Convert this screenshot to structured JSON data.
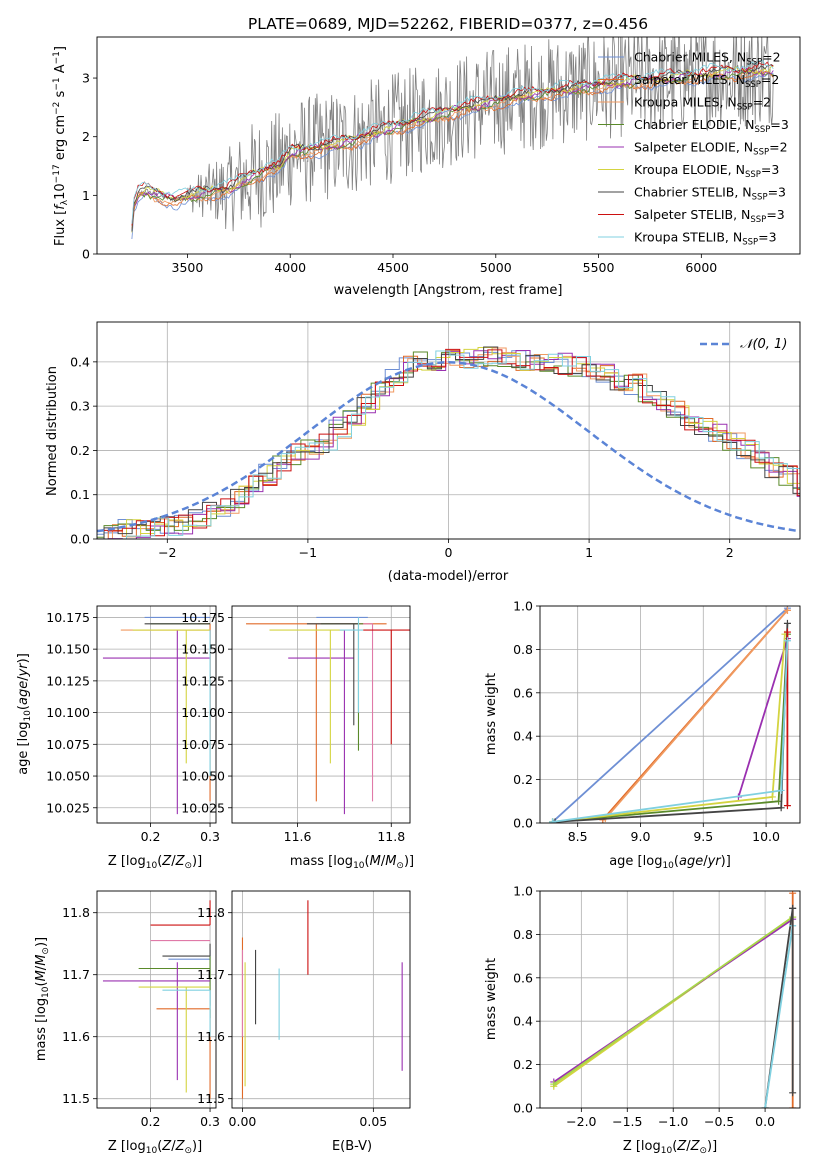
{
  "figure": {
    "title": "PLATE=0689, MJD=52262, FIBERID=0377, z=0.456"
  },
  "colors": {
    "chabrier_miles": "#6e8fd4",
    "salpeter_miles": "#e06a28",
    "kroupa_miles": "#f09a60",
    "chabrier_elodie": "#5a8a2a",
    "salpeter_elodie": "#9a30b0",
    "kroupa_elodie": "#d4d440",
    "chabrier_stelib": "#444444",
    "salpeter_stelib": "#cc1010",
    "kroupa_stelib": "#80d0e0",
    "data_grey": "#808080",
    "pink": "#e07aa8",
    "lime": "#a8d848",
    "normal_curve": "#5b84d6",
    "grid": "#b0b0b0"
  },
  "chart_data": [
    {
      "id": "spectrum",
      "type": "line",
      "title": "PLATE=0689, MJD=52262, FIBERID=0377, z=0.456",
      "xlabel": "wavelength [Angstrom, rest frame]",
      "ylabel": "Flux [f_λ 10^-17 erg cm^-2 s^-1 A^-1]",
      "ylabel_parts": {
        "prefix": "Flux [",
        "f": "f",
        "lambda": "λ",
        "mid": "10",
        "e1": "−17",
        "mid2": " erg cm",
        "e2": "−2",
        "mid3": " s",
        "e3": "−1",
        "mid4": " A",
        "e4": "−1",
        "suffix": "]"
      },
      "xlim": [
        3060,
        6480
      ],
      "ylim": [
        0,
        3.7
      ],
      "xticks": [
        3500,
        4000,
        4500,
        5000,
        5500,
        6000
      ],
      "yticks": [
        0,
        1,
        2,
        3
      ],
      "grid": false,
      "legend_position": "top-right",
      "series": [
        {
          "name": "Chabrier MILES, N_SSP=2",
          "label": "Chabrier MILES, N",
          "sub": "SSP",
          "n": "=2",
          "color_key": "chabrier_miles"
        },
        {
          "name": "Salpeter MILES, N_SSP=2",
          "label": "Salpeter MILES, N",
          "sub": "SSP",
          "n": "=2",
          "color_key": "salpeter_miles"
        },
        {
          "name": "Kroupa MILES, N_SSP=2",
          "label": "Kroupa MILES, N",
          "sub": "SSP",
          "n": "=2",
          "color_key": "kroupa_miles"
        },
        {
          "name": "Chabrier ELODIE, N_SSP=3",
          "label": "Chabrier ELODIE, N",
          "sub": "SSP",
          "n": "=3",
          "color_key": "chabrier_elodie"
        },
        {
          "name": "Salpeter ELODIE, N_SSP=2",
          "label": "Salpeter ELODIE, N",
          "sub": "SSP",
          "n": "=2",
          "color_key": "salpeter_elodie"
        },
        {
          "name": "Kroupa ELODIE, N_SSP=3",
          "label": "Kroupa ELODIE, N",
          "sub": "SSP",
          "n": "=3",
          "color_key": "kroupa_elodie"
        },
        {
          "name": "Chabrier STELIB, N_SSP=3",
          "label": "Chabrier STELIB, N",
          "sub": "SSP",
          "n": "=3",
          "color_key": "chabrier_stelib"
        },
        {
          "name": "Salpeter STELIB, N_SSP=3",
          "label": "Salpeter STELIB, N",
          "sub": "SSP",
          "n": "=3",
          "color_key": "salpeter_stelib"
        },
        {
          "name": "Kroupa STELIB, N_SSP=3",
          "label": "Kroupa STELIB, N",
          "sub": "SSP",
          "n": "=3",
          "color_key": "kroupa_stelib"
        }
      ],
      "continuum": {
        "x": [
          3200,
          3220,
          3240,
          3260,
          3300,
          3340,
          3400,
          3450,
          3500,
          3600,
          3700,
          3750,
          3800,
          3900,
          3950,
          4000,
          4100,
          4200,
          4300,
          4400,
          4500,
          4600,
          4700,
          4800,
          4900,
          5000,
          5100,
          5200,
          5300,
          5400,
          5500,
          5600,
          5700,
          5800,
          5900,
          6000,
          6100,
          6200,
          6300,
          6350
        ],
        "y": [
          0.0,
          0.0,
          0.82,
          1.02,
          1.08,
          1.02,
          0.95,
          0.93,
          0.98,
          1.05,
          1.1,
          1.2,
          1.3,
          1.45,
          1.5,
          1.72,
          1.78,
          1.85,
          1.92,
          2.05,
          2.15,
          2.25,
          2.35,
          2.45,
          2.52,
          2.6,
          2.68,
          2.72,
          2.78,
          2.82,
          2.88,
          2.92,
          2.95,
          2.98,
          3.02,
          3.05,
          3.08,
          3.1,
          3.12,
          3.12
        ]
      },
      "noisy_data_start": 3500
    },
    {
      "id": "residuals",
      "type": "bar",
      "xlabel": "(data-model)/error",
      "ylabel": "Normed distribution",
      "xlim": [
        -2.5,
        2.5
      ],
      "ylim": [
        0,
        0.49
      ],
      "xticks": [
        -2,
        -1,
        0,
        1,
        2
      ],
      "yticks": [
        0.0,
        0.1,
        0.2,
        0.3,
        0.4
      ],
      "grid": true,
      "legend_position": "top-right",
      "legend": [
        {
          "name": "N(0,1)",
          "label_pre": "𝒩(0, 1)",
          "color_key": "normal_curve"
        }
      ],
      "bin_width": 0.1,
      "base_histogram": [
        0.01,
        0.015,
        0.02,
        0.022,
        0.025,
        0.028,
        0.033,
        0.045,
        0.06,
        0.075,
        0.095,
        0.12,
        0.145,
        0.17,
        0.19,
        0.205,
        0.22,
        0.25,
        0.28,
        0.31,
        0.34,
        0.37,
        0.39,
        0.4,
        0.405,
        0.405,
        0.41,
        0.41,
        0.41,
        0.405,
        0.405,
        0.405,
        0.4,
        0.395,
        0.39,
        0.38,
        0.37,
        0.36,
        0.35,
        0.33,
        0.31,
        0.29,
        0.27,
        0.25,
        0.235,
        0.22,
        0.2,
        0.18,
        0.16,
        0.14,
        0.12,
        0.1,
        0.085,
        0.075,
        0.065,
        0.055,
        0.045,
        0.035,
        0.03,
        0.025,
        0.02,
        0.015,
        0.015,
        0.01,
        0.01,
        0.005
      ]
    },
    {
      "id": "age-vs-Z",
      "type": "scatter",
      "xlabel": "Z [log10(Z/Z⊙)]",
      "ylabel": "age [log10(age/yr)]",
      "xlim": [
        0.11,
        0.31
      ],
      "ylim": [
        10.013,
        10.184
      ],
      "xticks": [
        0.2,
        0.3
      ],
      "yticks": [
        10.025,
        10.05,
        10.075,
        10.1,
        10.125,
        10.15,
        10.175
      ],
      "grid": true,
      "errorbars": [
        {
          "x": 0.19,
          "y": 10.175,
          "xl": 0.19,
          "xh": 0.3,
          "yl": 10.175,
          "yh": 10.175,
          "color_key": "chabrier_miles"
        },
        {
          "x": 0.3,
          "y": 10.17,
          "xl": 0.28,
          "xh": 0.3,
          "yl": 10.03,
          "yh": 10.17,
          "color_key": "salpeter_miles"
        },
        {
          "x": 0.3,
          "y": 10.165,
          "xl": 0.15,
          "xh": 0.3,
          "yl": 10.165,
          "yh": 10.165,
          "color_key": "kroupa_miles"
        },
        {
          "x": 0.3,
          "y": 10.17,
          "xl": 0.2,
          "xh": 0.3,
          "yl": 10.17,
          "yh": 10.17,
          "color_key": "chabrier_elodie"
        },
        {
          "x": 0.245,
          "y": 10.143,
          "xl": 0.12,
          "xh": 0.3,
          "yl": 10.02,
          "yh": 10.165,
          "color_key": "salpeter_elodie"
        },
        {
          "x": 0.26,
          "y": 10.165,
          "xl": 0.17,
          "xh": 0.3,
          "yl": 10.06,
          "yh": 10.165,
          "color_key": "kroupa_elodie"
        },
        {
          "x": 0.3,
          "y": 10.17,
          "xl": 0.19,
          "xh": 0.3,
          "yl": 10.17,
          "yh": 10.17,
          "color_key": "chabrier_stelib"
        },
        {
          "x": 0.3,
          "y": 10.165,
          "xl": 0.3,
          "xh": 0.3,
          "yl": 10.075,
          "yh": 10.165,
          "color_key": "salpeter_stelib"
        },
        {
          "x": 0.3,
          "y": 10.165,
          "xl": 0.3,
          "xh": 0.3,
          "yl": 10.05,
          "yh": 10.165,
          "color_key": "kroupa_stelib"
        }
      ]
    },
    {
      "id": "age-vs-mass",
      "type": "scatter",
      "xlabel": "mass [log10(M/M⊙)]",
      "ylabel": "",
      "xlim": [
        11.46,
        11.84
      ],
      "ylim": [
        10.013,
        10.184
      ],
      "xticks": [
        11.6,
        11.8
      ],
      "yticks": [
        10.025,
        10.05,
        10.075,
        10.1,
        10.125,
        10.15,
        10.175
      ],
      "grid": true,
      "errorbars": [
        {
          "x": 11.7,
          "y": 10.175,
          "xl": 11.64,
          "xh": 11.75,
          "yl": 10.175,
          "yh": 10.175,
          "color_key": "chabrier_miles"
        },
        {
          "x": 11.64,
          "y": 10.17,
          "xl": 11.49,
          "xh": 11.79,
          "yl": 10.03,
          "yh": 10.17,
          "color_key": "salpeter_miles"
        },
        {
          "x": 11.76,
          "y": 10.17,
          "xl": 11.68,
          "xh": 11.76,
          "yl": 10.03,
          "yh": 10.17,
          "color_key": "pink"
        },
        {
          "x": 11.73,
          "y": 10.17,
          "xl": 11.65,
          "xh": 11.74,
          "yl": 10.07,
          "yh": 10.17,
          "color_key": "chabrier_elodie"
        },
        {
          "x": 11.7,
          "y": 10.143,
          "xl": 11.58,
          "xh": 11.72,
          "yl": 10.02,
          "yh": 10.165,
          "color_key": "salpeter_elodie"
        },
        {
          "x": 11.67,
          "y": 10.165,
          "xl": 11.54,
          "xh": 11.7,
          "yl": 10.06,
          "yh": 10.165,
          "color_key": "kroupa_elodie"
        },
        {
          "x": 11.72,
          "y": 10.17,
          "xl": 11.62,
          "xh": 11.73,
          "yl": 10.09,
          "yh": 10.17,
          "color_key": "chabrier_stelib"
        },
        {
          "x": 11.8,
          "y": 10.165,
          "xl": 11.74,
          "xh": 11.84,
          "yl": 10.075,
          "yh": 10.165,
          "color_key": "salpeter_stelib"
        },
        {
          "x": 11.73,
          "y": 10.165,
          "xl": 11.69,
          "xh": 11.74,
          "yl": 10.1,
          "yh": 10.175,
          "color_key": "kroupa_stelib"
        }
      ]
    },
    {
      "id": "weight-vs-age",
      "type": "line",
      "xlabel": "age [log10(age/yr)]",
      "ylabel": "mass weight",
      "xlim": [
        8.2,
        10.27
      ],
      "ylim": [
        0,
        1
      ],
      "xticks": [
        8.5,
        9.0,
        9.5,
        10.0
      ],
      "yticks": [
        0.0,
        0.2,
        0.4,
        0.6,
        0.8,
        1.0
      ],
      "grid": true,
      "series": [
        {
          "x": [
            8.3,
            10.17
          ],
          "y": [
            0.005,
            0.99
          ],
          "color_key": "chabrier_miles"
        },
        {
          "x": [
            8.7,
            10.17
          ],
          "y": [
            0.015,
            0.98
          ],
          "color_key": "salpeter_miles"
        },
        {
          "x": [
            8.72,
            10.17
          ],
          "y": [
            0.02,
            0.98
          ],
          "color_key": "kroupa_miles"
        },
        {
          "x": [
            8.3,
            10.1,
            10.17
          ],
          "y": [
            0.005,
            0.1,
            0.87
          ],
          "color_key": "chabrier_elodie"
        },
        {
          "x": [
            9.78,
            10.17
          ],
          "y": [
            0.12,
            0.85
          ],
          "color_key": "salpeter_elodie"
        },
        {
          "x": [
            8.3,
            10.05,
            10.15
          ],
          "y": [
            0.005,
            0.12,
            0.87
          ],
          "color_key": "kroupa_elodie"
        },
        {
          "x": [
            8.32,
            10.12,
            10.17
          ],
          "y": [
            0.005,
            0.07,
            0.92
          ],
          "color_key": "chabrier_stelib"
        },
        {
          "x": [
            10.17,
            10.17
          ],
          "y": [
            0.08,
            0.88
          ],
          "color_key": "salpeter_stelib"
        },
        {
          "x": [
            8.3,
            10.12,
            10.17
          ],
          "y": [
            0.005,
            0.15,
            0.84
          ],
          "color_key": "kroupa_stelib"
        }
      ]
    },
    {
      "id": "mass-vs-Z",
      "type": "scatter",
      "xlabel": "Z [log10(Z/Z⊙)]",
      "ylabel": "mass [log10(M/M⊙)]",
      "xlim": [
        0.11,
        0.31
      ],
      "ylim": [
        11.485,
        11.835
      ],
      "xticks": [
        0.2,
        0.3
      ],
      "yticks": [
        11.5,
        11.6,
        11.7,
        11.8
      ],
      "grid": true,
      "errorbars": [
        {
          "x": 0.3,
          "y": 11.725,
          "xl": 0.23,
          "xh": 0.3,
          "yl": 11.65,
          "yh": 11.74,
          "color_key": "chabrier_miles"
        },
        {
          "x": 0.3,
          "y": 11.645,
          "xl": 0.21,
          "xh": 0.3,
          "yl": 11.5,
          "yh": 11.645,
          "color_key": "salpeter_miles"
        },
        {
          "x": 0.3,
          "y": 11.755,
          "xl": 0.2,
          "xh": 0.3,
          "yl": 11.755,
          "yh": 11.755,
          "color_key": "pink"
        },
        {
          "x": 0.3,
          "y": 11.71,
          "xl": 0.18,
          "xh": 0.3,
          "yl": 11.63,
          "yh": 11.73,
          "color_key": "chabrier_elodie"
        },
        {
          "x": 0.245,
          "y": 11.69,
          "xl": 0.12,
          "xh": 0.3,
          "yl": 11.53,
          "yh": 11.72,
          "color_key": "salpeter_elodie"
        },
        {
          "x": 0.26,
          "y": 11.68,
          "xl": 0.18,
          "xh": 0.3,
          "yl": 11.51,
          "yh": 11.68,
          "color_key": "kroupa_elodie"
        },
        {
          "x": 0.3,
          "y": 11.73,
          "xl": 0.22,
          "xh": 0.3,
          "yl": 11.73,
          "yh": 11.75,
          "color_key": "chabrier_stelib"
        },
        {
          "x": 0.3,
          "y": 11.78,
          "xl": 0.2,
          "xh": 0.3,
          "yl": 11.78,
          "yh": 11.82,
          "color_key": "salpeter_stelib"
        },
        {
          "x": 0.3,
          "y": 11.675,
          "xl": 0.22,
          "xh": 0.3,
          "yl": 11.6,
          "yh": 11.675,
          "color_key": "kroupa_stelib"
        }
      ]
    },
    {
      "id": "mass-vs-ebv",
      "type": "scatter",
      "xlabel": "E(B-V)",
      "ylabel": "",
      "xlim": [
        -0.004,
        0.064
      ],
      "ylim": [
        11.485,
        11.835
      ],
      "xticks": [
        0.0,
        0.05
      ],
      "yticks": [
        11.5,
        11.6,
        11.7,
        11.8
      ],
      "grid": true,
      "errorbars": [
        {
          "x": 0.0,
          "y": 11.7,
          "xl": 0.0,
          "xh": 0.0,
          "yl": 11.5,
          "yh": 11.76,
          "color_key": "salpeter_miles"
        },
        {
          "x": 0.0,
          "y": 11.7,
          "xl": 0.0,
          "xh": 0.0,
          "yl": 11.6,
          "yh": 11.74,
          "color_key": "pink"
        },
        {
          "x": 0.001,
          "y": 11.7,
          "xl": 0.001,
          "xh": 0.001,
          "yl": 11.52,
          "yh": 11.72,
          "color_key": "kroupa_elodie"
        },
        {
          "x": 0.005,
          "y": 11.68,
          "xl": 0.005,
          "xh": 0.005,
          "yl": 11.62,
          "yh": 11.74,
          "color_key": "chabrier_stelib"
        },
        {
          "x": 0.014,
          "y": 11.65,
          "xl": 0.014,
          "xh": 0.014,
          "yl": 11.595,
          "yh": 11.71,
          "color_key": "kroupa_stelib"
        },
        {
          "x": 0.025,
          "y": 11.76,
          "xl": 0.025,
          "xh": 0.025,
          "yl": 11.7,
          "yh": 11.82,
          "color_key": "salpeter_stelib"
        },
        {
          "x": 0.061,
          "y": 11.63,
          "xl": 0.061,
          "xh": 0.061,
          "yl": 11.545,
          "yh": 11.72,
          "color_key": "salpeter_elodie"
        }
      ]
    },
    {
      "id": "weight-vs-Z",
      "type": "line",
      "xlabel": "Z [log10(Z/Z⊙)]",
      "ylabel": "mass weight",
      "xlim": [
        -2.45,
        0.38
      ],
      "ylim": [
        0,
        1
      ],
      "xticks": [
        -2.0,
        -1.5,
        -1.0,
        -0.5,
        0.0
      ],
      "yticks": [
        0.0,
        0.2,
        0.4,
        0.6,
        0.8,
        1.0
      ],
      "grid": true,
      "series": [
        {
          "x": [
            0.3,
            0.3
          ],
          "y": [
            0.0,
            0.99
          ],
          "color_key": "salpeter_miles"
        },
        {
          "x": [
            -2.3,
            0.3
          ],
          "y": [
            0.1,
            0.88
          ],
          "color_key": "kroupa_elodie"
        },
        {
          "x": [
            -2.3,
            0.3
          ],
          "y": [
            0.12,
            0.87
          ],
          "color_key": "salpeter_elodie"
        },
        {
          "x": [
            -2.3,
            0.3
          ],
          "y": [
            0.11,
            0.88
          ],
          "color_key": "lime"
        },
        {
          "x": [
            0.0,
            0.3
          ],
          "y": [
            0.0,
            0.92
          ],
          "color_key": "chabrier_stelib"
        },
        {
          "x": [
            0.0,
            0.3
          ],
          "y": [
            0.0,
            0.84
          ],
          "color_key": "kroupa_stelib"
        },
        {
          "x": [
            0.3,
            0.3
          ],
          "y": [
            0.07,
            0.92
          ],
          "color_key": "chabrier_stelib"
        }
      ]
    }
  ]
}
